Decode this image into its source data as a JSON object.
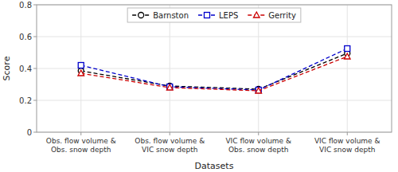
{
  "chart_data": {
    "type": "line",
    "categories": [
      "Obs. flow volume &\nObs. snow depth",
      "Obs. flow volume &\nVIC snow depth",
      "VIC flow volume &\nObs. snow depth",
      "VIC flow volume &\nVIC snow depth"
    ],
    "series": [
      {
        "name": "Barnston",
        "color": "#000000",
        "marker": "circle",
        "line_style": "dashed",
        "values": [
          0.385,
          0.29,
          0.27,
          0.495
        ]
      },
      {
        "name": "LEPS",
        "color": "#0000cc",
        "marker": "square",
        "line_style": "dashed",
        "values": [
          0.42,
          0.285,
          0.265,
          0.525
        ]
      },
      {
        "name": "Gerrity",
        "color": "#cc0000",
        "marker": "triangle",
        "line_style": "dashed",
        "values": [
          0.37,
          0.28,
          0.26,
          0.475
        ]
      }
    ],
    "x_label": "Datasets",
    "y_label": "Score",
    "ylim": [
      0.0,
      0.8
    ],
    "yticks": [
      0,
      0.2,
      0.4,
      0.6,
      0.8
    ],
    "grid": true,
    "legend": "top"
  }
}
